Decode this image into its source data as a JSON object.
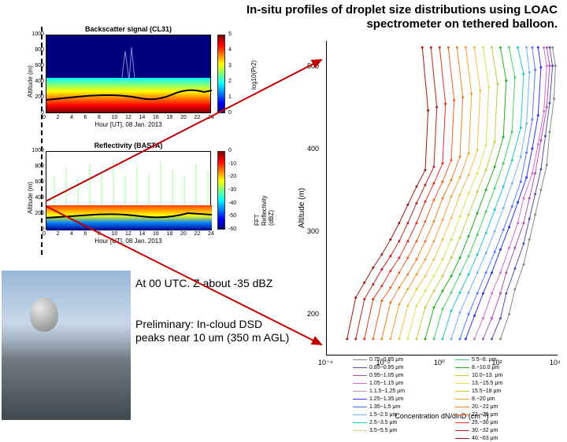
{
  "title": "In-situ profiles of droplet size distributions using LOAC spectrometer on tethered balloon.",
  "caption1": "At 00 UTC. Z about -35 dBZ",
  "caption2": "Preliminary: In-cloud DSD peaks near 10 um (350 m AGL)",
  "chart_tl": {
    "title": "Backscatter signal (CL31)",
    "ylabel": "Altitude (m)",
    "xlabel": "Hour [UT], 08 Jan. 2013",
    "cb_label": "log10(Pr2)",
    "yticks": [
      "0",
      "200",
      "400",
      "600",
      "800",
      "1000"
    ],
    "xticks": [
      "0",
      "2",
      "4",
      "6",
      "8",
      "10",
      "12",
      "14",
      "16",
      "18",
      "20",
      "22",
      "24"
    ],
    "cb_ticks": [
      "0",
      "1",
      "2",
      "3",
      "4",
      "5"
    ],
    "colors": {
      "bg": "#ffffff",
      "gradient": [
        "#00007f",
        "#0000ff",
        "#007fff",
        "#00ffff",
        "#7fff7f",
        "#ffff00",
        "#ff7f00",
        "#ff0000",
        "#7f0000"
      ]
    }
  },
  "chart_bl": {
    "title": "Reflectivity (BASTA)",
    "ylabel": "Altitude (m)",
    "xlabel": "Hour [UT], 08 Jan. 2013",
    "cb_label": "FFT Reflectivity (dBZ)",
    "yticks": [
      "0",
      "200",
      "400",
      "600",
      "800",
      "1000"
    ],
    "xticks": [
      "0",
      "2",
      "4",
      "6",
      "8",
      "10",
      "12",
      "14",
      "16",
      "18",
      "20",
      "22",
      "24"
    ],
    "cb_ticks": [
      "-60",
      "-50",
      "-40",
      "-30",
      "-20",
      "-10",
      "0"
    ],
    "colors": {
      "bg": "#ffffff"
    }
  },
  "chart_right": {
    "ylabel": "Altitude (m)",
    "xlabel": "Concentration dN/dlnD (cm⁻³)",
    "yticks": [
      "200",
      "300",
      "400",
      "500"
    ],
    "xticks": [
      "10⁻⁴",
      "10⁻²",
      "10⁰",
      "10²",
      "10⁴"
    ],
    "ylim": [
      150,
      530
    ],
    "xlim_log": [
      -4,
      4
    ]
  },
  "legend_left": [
    {
      "label": "0.75−0.85 μm",
      "color": "#888888"
    },
    {
      "label": "0.85−0.95 μm",
      "color": "#5050b0"
    },
    {
      "label": "0.95−1.05 μm",
      "color": "#b050b0"
    },
    {
      "label": "1.05−1.15 μm",
      "color": "#d06fd0"
    },
    {
      "label": "1.1.5−1.25 μm",
      "color": "#d890d8"
    },
    {
      "label": "1.25−1.35 μm",
      "color": "#3030ff"
    },
    {
      "label": "1.35−1.5 μm",
      "color": "#5080ff"
    },
    {
      "label": "1.5−2.5 μm",
      "color": "#70b0ff"
    },
    {
      "label": "2.5−3.5 μm",
      "color": "#20c8c8"
    },
    {
      "label": "3.5−5.5 μm",
      "color": "#d0d080"
    }
  ],
  "legend_right": [
    {
      "label": "5.5−8. μm",
      "color": "#40d060"
    },
    {
      "label": "8.−10.0 μm",
      "color": "#20b020"
    },
    {
      "label": "10.0−13. μm",
      "color": "#c0d040"
    },
    {
      "label": "13.−15.5 μm",
      "color": "#e0e050"
    },
    {
      "label": "15.5−18 μm",
      "color": "#f0c040"
    },
    {
      "label": "8.−20 μm",
      "color": "#f0a030"
    },
    {
      "label": "20.−22 μm",
      "color": "#f08020"
    },
    {
      "label": "22.−25 μm",
      "color": "#f06020"
    },
    {
      "label": "25.−30 μm",
      "color": "#e03020"
    },
    {
      "label": "30.−32 μm",
      "color": "#c02020"
    },
    {
      "label": "40.−63 μm",
      "color": "#a01818"
    }
  ],
  "profiles": [
    {
      "color": "#888888",
      "pts": [
        [
          3.8,
          522
        ],
        [
          3.9,
          500
        ],
        [
          3.85,
          460
        ],
        [
          3.7,
          420
        ],
        [
          3.6,
          380
        ],
        [
          3.4,
          350
        ],
        [
          3.2,
          320
        ],
        [
          3.0,
          290
        ],
        [
          2.8,
          260
        ],
        [
          2.5,
          230
        ],
        [
          2.3,
          200
        ],
        [
          2.0,
          170
        ]
      ]
    },
    {
      "color": "#5050b0",
      "pts": [
        [
          3.7,
          522
        ],
        [
          3.8,
          500
        ],
        [
          3.7,
          455
        ],
        [
          3.55,
          415
        ],
        [
          3.4,
          375
        ],
        [
          3.2,
          345
        ],
        [
          3.0,
          315
        ],
        [
          2.8,
          285
        ],
        [
          2.5,
          255
        ],
        [
          2.2,
          225
        ],
        [
          2.0,
          195
        ],
        [
          1.7,
          170
        ]
      ]
    },
    {
      "color": "#b050b0",
      "pts": [
        [
          3.6,
          522
        ],
        [
          3.7,
          500
        ],
        [
          3.6,
          450
        ],
        [
          3.4,
          410
        ],
        [
          3.2,
          370
        ],
        [
          3.0,
          340
        ],
        [
          2.8,
          310
        ],
        [
          2.5,
          280
        ],
        [
          2.2,
          250
        ],
        [
          2.0,
          225
        ],
        [
          1.7,
          195
        ],
        [
          1.4,
          170
        ]
      ]
    },
    {
      "color": "#d06fd0",
      "pts": [
        [
          3.5,
          522
        ],
        [
          3.6,
          500
        ],
        [
          3.5,
          445
        ],
        [
          3.3,
          405
        ],
        [
          3.1,
          370
        ],
        [
          2.8,
          340
        ],
        [
          2.6,
          310
        ],
        [
          2.3,
          280
        ],
        [
          2.0,
          250
        ],
        [
          1.7,
          225
        ],
        [
          1.4,
          195
        ],
        [
          1.1,
          170
        ]
      ]
    },
    {
      "color": "#3030ff",
      "pts": [
        [
          3.3,
          522
        ],
        [
          3.4,
          498
        ],
        [
          3.3,
          440
        ],
        [
          3.1,
          400
        ],
        [
          2.9,
          365
        ],
        [
          2.6,
          335
        ],
        [
          2.3,
          305
        ],
        [
          2.0,
          278
        ],
        [
          1.7,
          250
        ],
        [
          1.4,
          225
        ],
        [
          1.1,
          198
        ],
        [
          0.8,
          170
        ]
      ]
    },
    {
      "color": "#5080ff",
      "pts": [
        [
          3.1,
          522
        ],
        [
          3.2,
          495
        ],
        [
          3.1,
          435
        ],
        [
          2.9,
          395
        ],
        [
          2.7,
          360
        ],
        [
          2.4,
          330
        ],
        [
          2.1,
          302
        ],
        [
          1.8,
          275
        ],
        [
          1.5,
          250
        ],
        [
          1.2,
          225
        ],
        [
          0.9,
          200
        ],
        [
          0.6,
          170
        ]
      ]
    },
    {
      "color": "#70b0ff",
      "pts": [
        [
          2.9,
          522
        ],
        [
          3.0,
          492
        ],
        [
          2.9,
          430
        ],
        [
          2.7,
          390
        ],
        [
          2.4,
          358
        ],
        [
          2.1,
          328
        ],
        [
          1.8,
          300
        ],
        [
          1.5,
          274
        ],
        [
          1.2,
          250
        ],
        [
          0.9,
          226
        ],
        [
          0.6,
          202
        ],
        [
          0.3,
          170
        ]
      ]
    },
    {
      "color": "#20c8c8",
      "pts": [
        [
          2.6,
          522
        ],
        [
          2.8,
          490
        ],
        [
          2.7,
          425
        ],
        [
          2.4,
          386
        ],
        [
          2.1,
          354
        ],
        [
          1.8,
          326
        ],
        [
          1.5,
          298
        ],
        [
          1.2,
          272
        ],
        [
          0.9,
          248
        ],
        [
          0.6,
          226
        ],
        [
          0.3,
          204
        ],
        [
          0.0,
          170
        ]
      ]
    },
    {
      "color": "#40d060",
      "pts": [
        [
          2.3,
          522
        ],
        [
          2.5,
          486
        ],
        [
          2.4,
          420
        ],
        [
          2.1,
          382
        ],
        [
          1.8,
          352
        ],
        [
          1.5,
          324
        ],
        [
          1.2,
          296
        ],
        [
          0.9,
          270
        ],
        [
          0.6,
          248
        ],
        [
          0.3,
          226
        ],
        [
          0.0,
          206
        ],
        [
          -0.3,
          170
        ]
      ]
    },
    {
      "color": "#20b020",
      "pts": [
        [
          2.0,
          522
        ],
        [
          2.2,
          482
        ],
        [
          2.1,
          414
        ],
        [
          1.8,
          378
        ],
        [
          1.5,
          350
        ],
        [
          1.2,
          322
        ],
        [
          0.9,
          294
        ],
        [
          0.6,
          268
        ],
        [
          0.3,
          246
        ],
        [
          0.0,
          228
        ],
        [
          -0.3,
          208
        ],
        [
          -0.6,
          170
        ]
      ]
    },
    {
      "color": "#c0d040",
      "pts": [
        [
          1.7,
          522
        ],
        [
          1.9,
          478
        ],
        [
          1.8,
          408
        ],
        [
          1.5,
          374
        ],
        [
          1.2,
          348
        ],
        [
          0.9,
          320
        ],
        [
          0.6,
          292
        ],
        [
          0.3,
          268
        ],
        [
          0.0,
          246
        ],
        [
          -0.3,
          228
        ],
        [
          -0.6,
          208
        ],
        [
          -0.9,
          170
        ]
      ]
    },
    {
      "color": "#e0e050",
      "pts": [
        [
          1.4,
          522
        ],
        [
          1.6,
          474
        ],
        [
          1.5,
          404
        ],
        [
          1.2,
          370
        ],
        [
          0.9,
          346
        ],
        [
          0.6,
          318
        ],
        [
          0.3,
          290
        ],
        [
          0.0,
          266
        ],
        [
          -0.3,
          246
        ],
        [
          -0.6,
          228
        ],
        [
          -0.9,
          210
        ],
        [
          -1.2,
          170
        ]
      ]
    },
    {
      "color": "#f0c040",
      "pts": [
        [
          1.1,
          522
        ],
        [
          1.3,
          470
        ],
        [
          1.2,
          398
        ],
        [
          0.9,
          368
        ],
        [
          0.6,
          344
        ],
        [
          0.3,
          316
        ],
        [
          0.0,
          290
        ],
        [
          -0.3,
          266
        ],
        [
          -0.6,
          246
        ],
        [
          -0.9,
          230
        ],
        [
          -1.2,
          210
        ],
        [
          -1.5,
          170
        ]
      ]
    },
    {
      "color": "#f0a030",
      "pts": [
        [
          0.8,
          522
        ],
        [
          1.0,
          466
        ],
        [
          0.9,
          394
        ],
        [
          0.6,
          365
        ],
        [
          0.3,
          342
        ],
        [
          0.0,
          314
        ],
        [
          -0.3,
          288
        ],
        [
          -0.6,
          266
        ],
        [
          -0.9,
          248
        ],
        [
          -1.2,
          230
        ],
        [
          -1.5,
          212
        ],
        [
          -1.8,
          170
        ]
      ]
    },
    {
      "color": "#f08020",
      "pts": [
        [
          0.5,
          522
        ],
        [
          0.7,
          462
        ],
        [
          0.6,
          390
        ],
        [
          0.3,
          362
        ],
        [
          0.0,
          340
        ],
        [
          -0.3,
          312
        ],
        [
          -0.6,
          288
        ],
        [
          -0.9,
          266
        ],
        [
          -1.2,
          248
        ],
        [
          -1.5,
          232
        ],
        [
          -1.8,
          214
        ],
        [
          -2.1,
          170
        ]
      ]
    },
    {
      "color": "#f06020",
      "pts": [
        [
          0.2,
          522
        ],
        [
          0.4,
          458
        ],
        [
          0.3,
          386
        ],
        [
          0.0,
          360
        ],
        [
          -0.3,
          338
        ],
        [
          -0.6,
          312
        ],
        [
          -0.9,
          288
        ],
        [
          -1.2,
          268
        ],
        [
          -1.5,
          250
        ],
        [
          -1.8,
          232
        ],
        [
          -2.1,
          216
        ],
        [
          -2.4,
          170
        ]
      ]
    },
    {
      "color": "#e03020",
      "pts": [
        [
          -0.1,
          522
        ],
        [
          0.1,
          454
        ],
        [
          0.0,
          382
        ],
        [
          -0.3,
          358
        ],
        [
          -0.6,
          336
        ],
        [
          -0.9,
          310
        ],
        [
          -1.2,
          288
        ],
        [
          -1.5,
          268
        ],
        [
          -1.8,
          252
        ],
        [
          -2.1,
          234
        ],
        [
          -2.4,
          218
        ],
        [
          -2.7,
          170
        ]
      ]
    },
    {
      "color": "#c02020",
      "pts": [
        [
          -0.4,
          522
        ],
        [
          -0.2,
          450
        ],
        [
          -0.3,
          378
        ],
        [
          -0.6,
          356
        ],
        [
          -0.9,
          334
        ],
        [
          -1.2,
          310
        ],
        [
          -1.5,
          288
        ],
        [
          -1.8,
          270
        ],
        [
          -2.1,
          254
        ],
        [
          -2.4,
          236
        ],
        [
          -2.7,
          218
        ],
        [
          -3.0,
          170
        ]
      ]
    },
    {
      "color": "#a01818",
      "pts": [
        [
          -0.7,
          522
        ],
        [
          -0.5,
          446
        ],
        [
          -0.6,
          374
        ],
        [
          -0.9,
          354
        ],
        [
          -1.2,
          332
        ],
        [
          -1.5,
          310
        ],
        [
          -1.8,
          290
        ],
        [
          -2.1,
          272
        ],
        [
          -2.4,
          256
        ],
        [
          -2.7,
          238
        ],
        [
          -3.0,
          220
        ],
        [
          -3.3,
          170
        ]
      ]
    }
  ],
  "arrows": {
    "color": "#c00000"
  }
}
